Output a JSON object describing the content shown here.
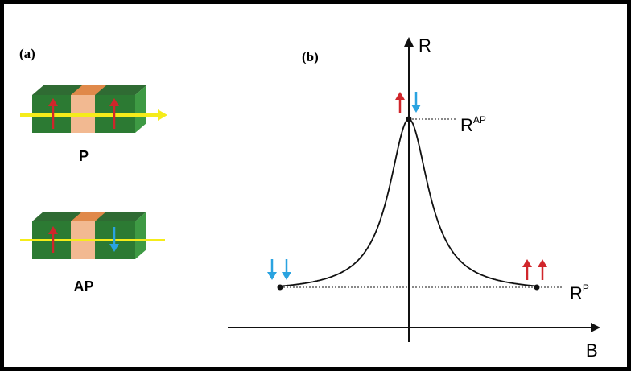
{
  "panel_a": {
    "label": "(a)",
    "parallel_label": "P",
    "antiparallel_label": "AP"
  },
  "panel_b": {
    "label": "(b)",
    "y_axis_label": "R",
    "x_axis_label": "B",
    "r_ap": {
      "base": "R",
      "sup": "AP"
    },
    "r_p": {
      "base": "R",
      "sup": "P"
    }
  }
}
